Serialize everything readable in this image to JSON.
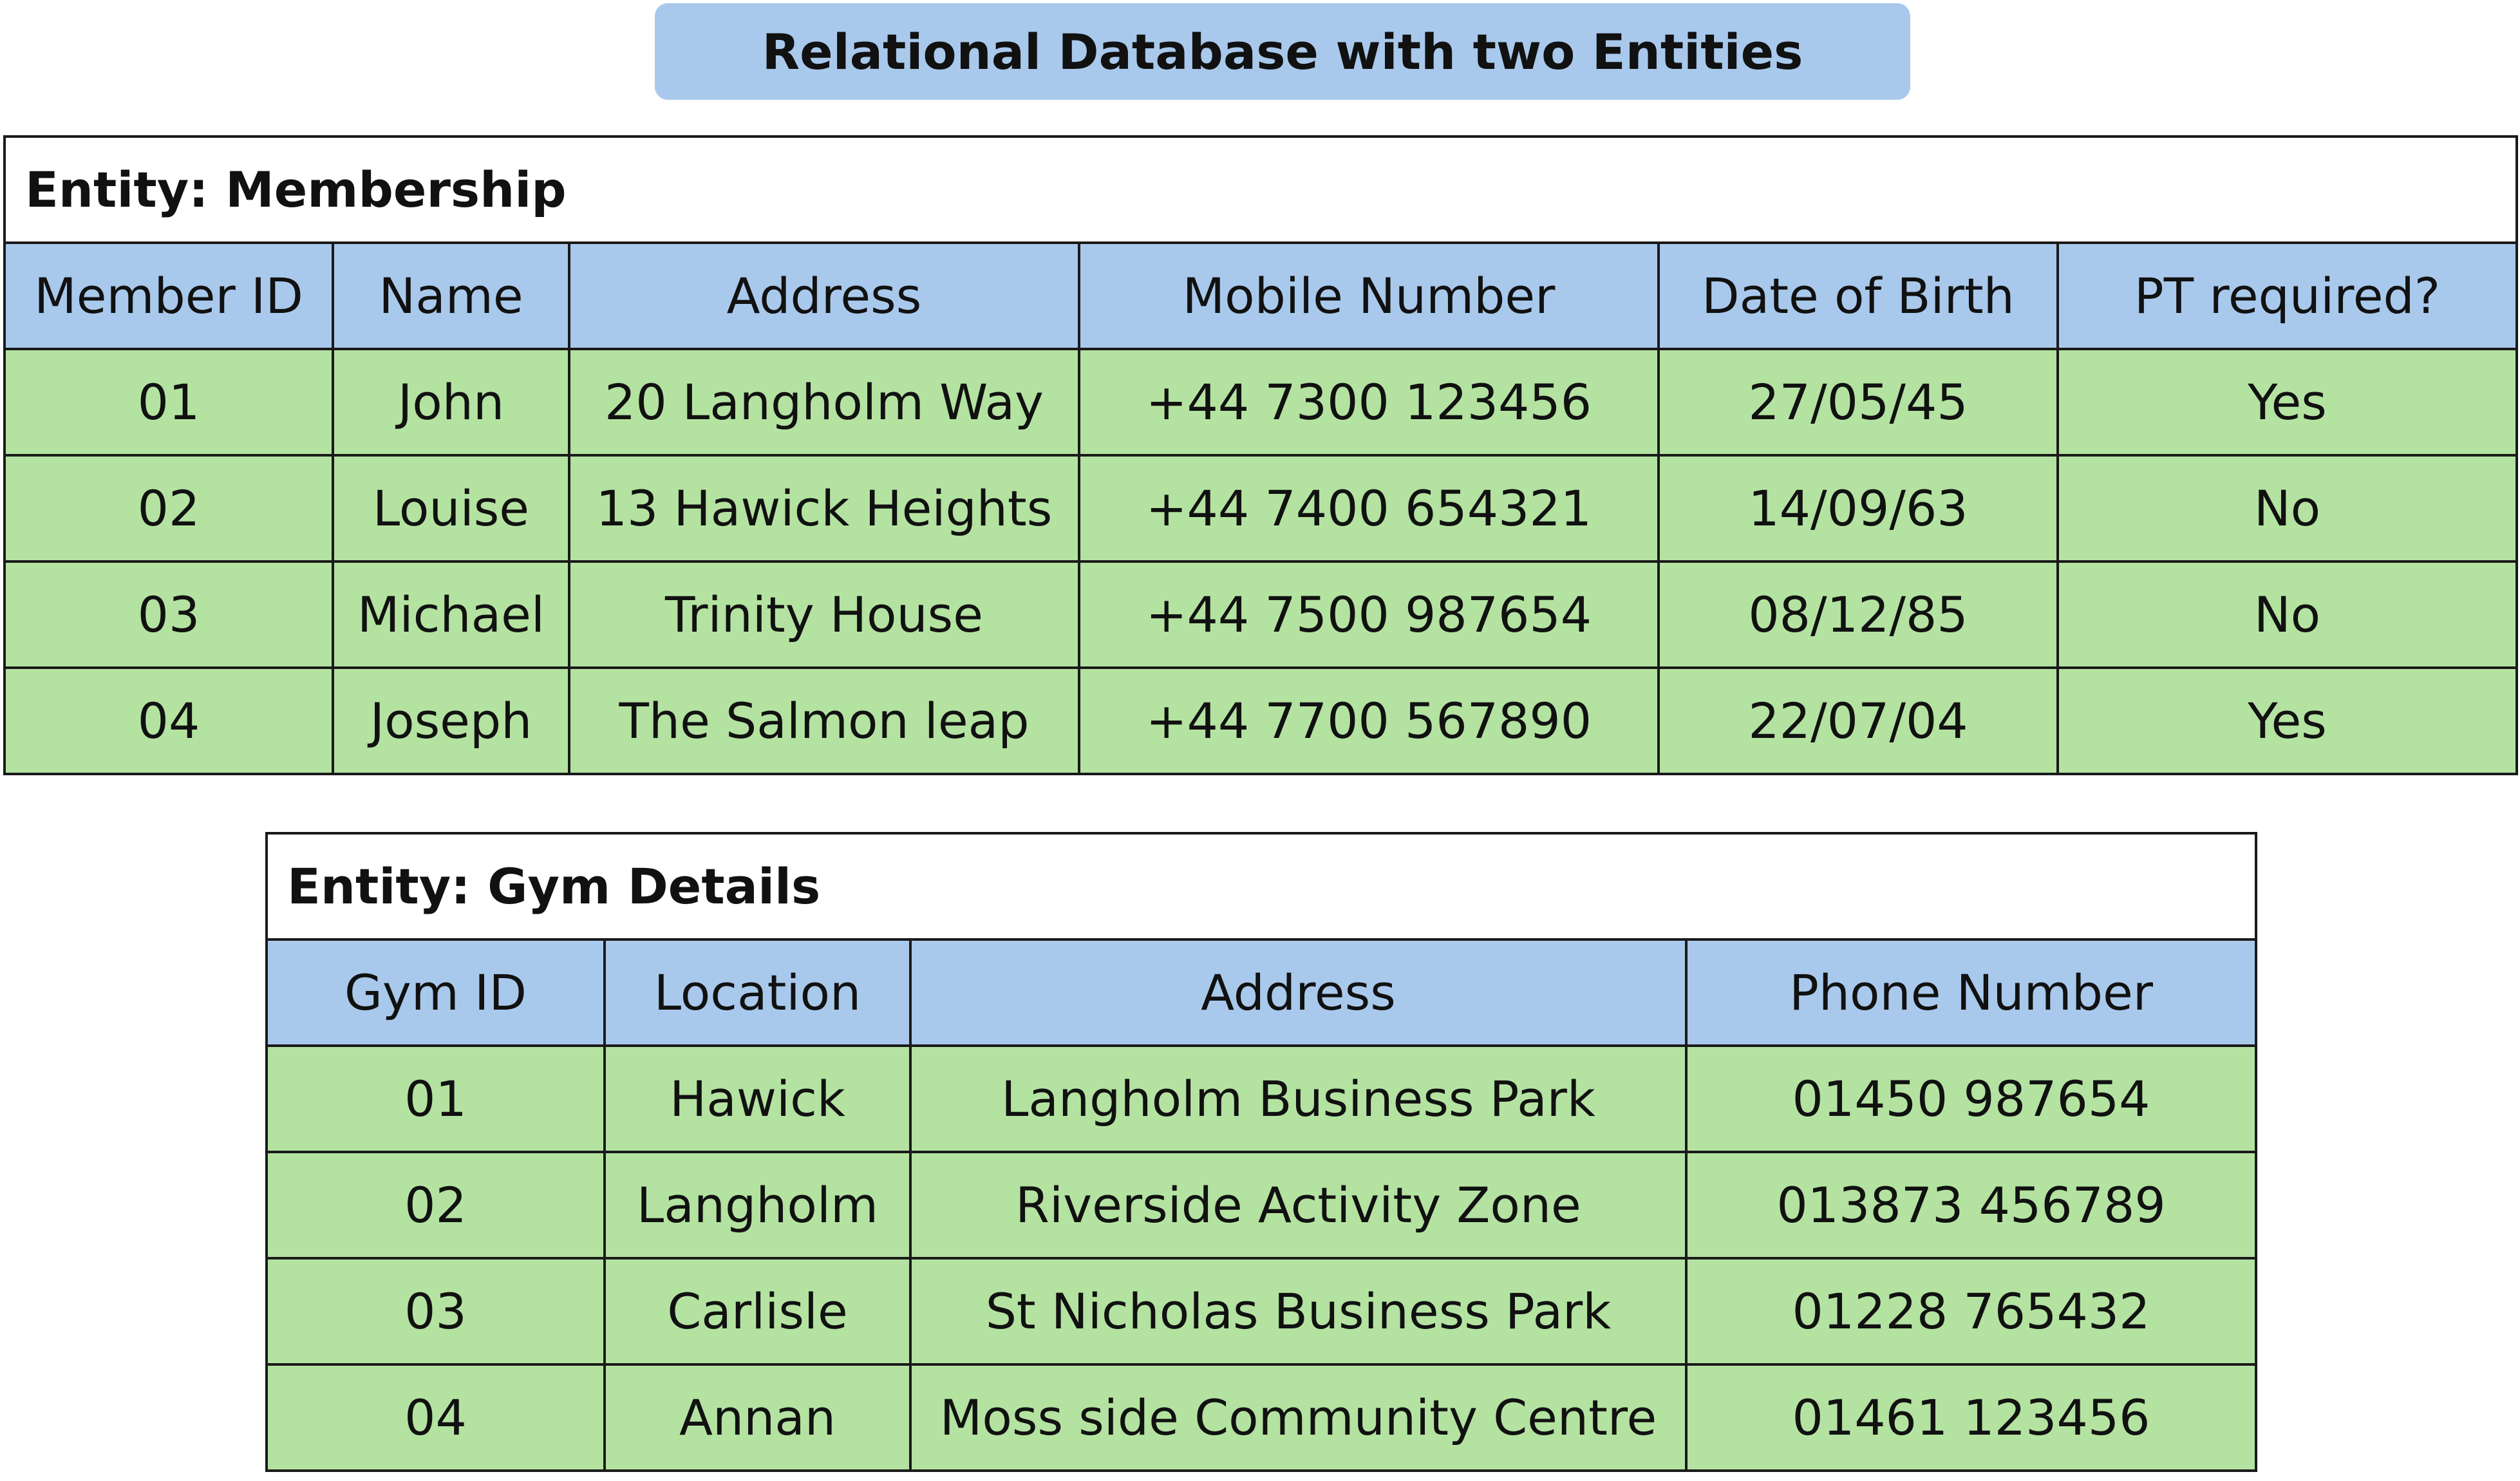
{
  "title": "Relational Database with two Entities",
  "membership": {
    "title": "Entity: Membership",
    "headers": [
      "Member ID",
      "Name",
      "Address",
      "Mobile Number",
      "Date of Birth",
      "PT required?"
    ],
    "rows": [
      [
        "01",
        "John",
        "20 Langholm Way",
        "+44 7300 123456",
        "27/05/45",
        "Yes"
      ],
      [
        "02",
        "Louise",
        "13 Hawick Heights",
        "+44 7400 654321",
        "14/09/63",
        "No"
      ],
      [
        "03",
        "Michael",
        "Trinity House",
        "+44 7500 987654",
        "08/12/85",
        "No"
      ],
      [
        "04",
        "Joseph",
        "The Salmon leap",
        "+44 7700 567890",
        "22/07/04",
        "Yes"
      ]
    ]
  },
  "gym": {
    "title": "Entity: Gym Details",
    "headers": [
      "Gym ID",
      "Location",
      "Address",
      "Phone Number"
    ],
    "rows": [
      [
        "01",
        "Hawick",
        "Langholm Business Park",
        "01450 987654"
      ],
      [
        "02",
        "Langholm",
        "Riverside Activity Zone",
        "013873 456789"
      ],
      [
        "03",
        "Carlisle",
        "St Nicholas Business Park",
        "01228 765432"
      ],
      [
        "04",
        "Annan",
        "Moss side Community Centre",
        "01461 123456"
      ]
    ]
  },
  "colors": {
    "header_fill": "#a9c9ec",
    "data_fill": "#b4e3a1",
    "border": "#1a1a1a"
  }
}
